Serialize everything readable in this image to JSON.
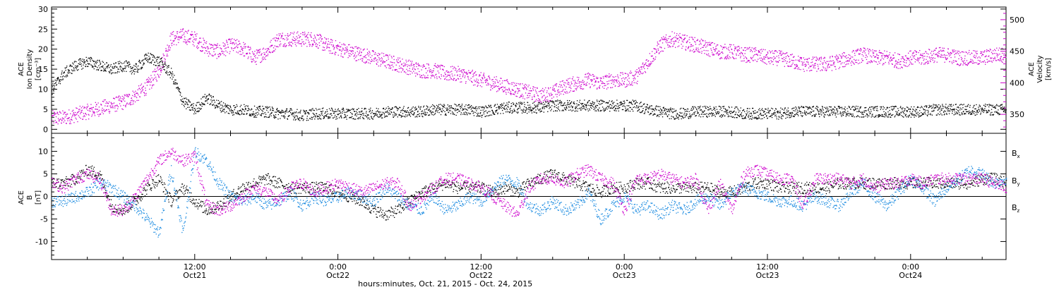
{
  "colors": {
    "black": "#000000",
    "magenta": "#cc00cc",
    "blue": "#1a8ae0"
  },
  "chart_data": [
    {
      "type": "scatter",
      "panel": "plasma",
      "left_axis": {
        "label_lines": [
          "ACE",
          "Ion Density",
          "[cm⁻³]"
        ],
        "ticks": [
          0,
          5,
          10,
          15,
          20,
          25,
          30
        ],
        "ylim": [
          -1,
          30.5
        ]
      },
      "right_axis": {
        "label_lines": [
          "ACE",
          "Velocity",
          "[km/s]"
        ],
        "ticks": [
          350,
          400,
          450,
          500
        ],
        "ylim": [
          320,
          520
        ]
      },
      "series": [
        {
          "color": "#000000",
          "axis": "left",
          "x": [
            0,
            1,
            2,
            3,
            4,
            5,
            6,
            7,
            8,
            9,
            10,
            11,
            12,
            13,
            14,
            15,
            16,
            17,
            18,
            19,
            20,
            21,
            22,
            23,
            24,
            25,
            26,
            27,
            28,
            29,
            30,
            31,
            32,
            33,
            34,
            35,
            36,
            37,
            38,
            39,
            40,
            41,
            42,
            43,
            44,
            45,
            46,
            47,
            48,
            49,
            50,
            51,
            52,
            53,
            54,
            55,
            56,
            57,
            58,
            59,
            60,
            61,
            62,
            63,
            64,
            65,
            66,
            67,
            68,
            69,
            70,
            71,
            72,
            73,
            74,
            75,
            76,
            77,
            78,
            79,
            80
          ],
          "y": [
            10,
            14,
            16,
            17,
            16,
            15,
            16,
            15,
            18,
            17,
            14,
            7,
            5,
            8,
            6,
            5,
            5,
            4.5,
            4.5,
            4,
            4,
            3.5,
            4,
            4,
            4,
            4,
            4,
            4,
            4.5,
            4.5,
            4.5,
            4.5,
            5,
            5,
            5,
            5,
            4.5,
            5,
            5.5,
            5.5,
            5.5,
            5.5,
            6,
            6,
            6,
            6,
            6,
            6,
            6,
            6,
            5,
            4.5,
            4,
            4,
            4.5,
            4.5,
            4.5,
            4.5,
            4,
            4,
            4,
            4,
            4.5,
            4.5,
            4.5,
            4.5,
            4.5,
            4.5,
            4.5,
            4.5,
            4.5,
            4.5,
            4.5,
            4.5,
            5,
            5,
            5,
            5,
            5,
            5,
            5
          ]
        },
        {
          "color": "#cc00cc",
          "axis": "right",
          "x": [
            0,
            1,
            2,
            3,
            4,
            5,
            6,
            7,
            8,
            9,
            10,
            11,
            12,
            13,
            14,
            15,
            16,
            17,
            18,
            19,
            20,
            21,
            22,
            23,
            24,
            25,
            26,
            27,
            28,
            29,
            30,
            31,
            32,
            33,
            34,
            35,
            36,
            37,
            38,
            39,
            40,
            41,
            42,
            43,
            44,
            45,
            46,
            47,
            48,
            49,
            50,
            51,
            52,
            53,
            54,
            55,
            56,
            57,
            58,
            59,
            60,
            61,
            62,
            63,
            64,
            65,
            66,
            67,
            68,
            69,
            70,
            71,
            72,
            73,
            74,
            75,
            76,
            77,
            78,
            79,
            80
          ],
          "y": [
            345,
            345,
            350,
            355,
            360,
            365,
            370,
            380,
            395,
            420,
            470,
            475,
            470,
            455,
            450,
            460,
            455,
            440,
            450,
            470,
            470,
            470,
            470,
            460,
            455,
            450,
            445,
            440,
            435,
            430,
            425,
            420,
            420,
            415,
            415,
            410,
            405,
            400,
            395,
            390,
            385,
            380,
            385,
            395,
            400,
            405,
            400,
            405,
            405,
            410,
            435,
            460,
            470,
            465,
            460,
            455,
            450,
            450,
            445,
            445,
            440,
            440,
            435,
            430,
            430,
            430,
            435,
            440,
            445,
            440,
            440,
            435,
            440,
            440,
            445,
            445,
            440,
            440,
            440,
            445,
            445
          ]
        }
      ]
    },
    {
      "type": "scatter",
      "panel": "magnetic",
      "left_axis": {
        "label_lines": [
          "ACE",
          "B",
          "[nT]"
        ],
        "ticks": [
          -10,
          -5,
          0,
          5,
          10
        ],
        "ylim": [
          -14,
          14
        ]
      },
      "zero_line": true,
      "series": [
        {
          "name": "Bx",
          "color": "#000000",
          "x": [
            0,
            1,
            2,
            3,
            4,
            5,
            6,
            7,
            8,
            9,
            10,
            11,
            12,
            13,
            14,
            15,
            16,
            17,
            18,
            19,
            20,
            21,
            22,
            23,
            24,
            25,
            26,
            27,
            28,
            29,
            30,
            31,
            32,
            33,
            34,
            35,
            36,
            37,
            38,
            39,
            40,
            41,
            42,
            43,
            44,
            45,
            46,
            47,
            48,
            49,
            50,
            51,
            52,
            53,
            54,
            55,
            56,
            57,
            58,
            59,
            60,
            61,
            62,
            63,
            64,
            65,
            66,
            67,
            68,
            69,
            70,
            71,
            72,
            73,
            74,
            75,
            76,
            77,
            78,
            79,
            80
          ],
          "y": [
            3,
            3,
            4,
            6,
            5,
            -2,
            -3,
            -1,
            2,
            4,
            -1,
            2,
            -1,
            -3,
            -2,
            0,
            2,
            3,
            4,
            3,
            2,
            2,
            2,
            2,
            1,
            0,
            -1,
            -3,
            -4,
            -3,
            -1,
            1,
            2,
            3,
            2,
            2,
            2,
            1,
            2,
            1,
            3,
            4,
            5,
            4,
            3,
            2,
            1,
            2,
            2,
            3,
            3,
            2,
            2,
            2,
            2,
            2,
            1,
            1,
            2,
            3,
            3,
            2,
            2,
            2,
            2,
            2,
            3,
            3,
            3,
            3,
            3,
            3,
            3,
            3,
            3,
            3,
            3,
            3,
            4,
            4,
            3
          ]
        },
        {
          "name": "By",
          "color": "#1a8ae0",
          "x": [
            0,
            1,
            2,
            3,
            4,
            5,
            6,
            7,
            8,
            9,
            10,
            11,
            12,
            13,
            14,
            15,
            16,
            17,
            18,
            19,
            20,
            21,
            22,
            23,
            24,
            25,
            26,
            27,
            28,
            29,
            30,
            31,
            32,
            33,
            34,
            35,
            36,
            37,
            38,
            39,
            40,
            41,
            42,
            43,
            44,
            45,
            46,
            47,
            48,
            49,
            50,
            51,
            52,
            53,
            54,
            55,
            56,
            57,
            58,
            59,
            60,
            61,
            62,
            63,
            64,
            65,
            66,
            67,
            68,
            69,
            70,
            71,
            72,
            73,
            74,
            75,
            76,
            77,
            78,
            79,
            80
          ],
          "y": [
            -1,
            -1,
            0,
            1,
            3,
            2,
            0,
            -2,
            -5,
            -8,
            6,
            -8,
            10,
            8,
            3,
            0,
            -1,
            0,
            -2,
            -1,
            1,
            -2,
            0,
            -1,
            0,
            1,
            0,
            -1,
            2,
            0,
            -2,
            -3,
            0,
            -3,
            -2,
            0,
            -1,
            2,
            4,
            3,
            -2,
            -3,
            -1,
            -3,
            -2,
            1,
            -5,
            -2,
            0,
            -3,
            -2,
            -4,
            -2,
            -3,
            -1,
            0,
            -2,
            1,
            2,
            1,
            0,
            -1,
            -1,
            -2,
            0,
            -1,
            -2,
            1,
            3,
            0,
            -2,
            1,
            4,
            2,
            -1,
            2,
            4,
            6,
            5,
            3,
            4
          ]
        },
        {
          "name": "Bz",
          "color": "#cc00cc",
          "x": [
            0,
            1,
            2,
            3,
            4,
            5,
            6,
            7,
            8,
            9,
            10,
            11,
            12,
            13,
            14,
            15,
            16,
            17,
            18,
            19,
            20,
            21,
            22,
            23,
            24,
            25,
            26,
            27,
            28,
            29,
            30,
            31,
            32,
            33,
            34,
            35,
            36,
            37,
            38,
            39,
            40,
            41,
            42,
            43,
            44,
            45,
            46,
            47,
            48,
            49,
            50,
            51,
            52,
            53,
            54,
            55,
            56,
            57,
            58,
            59,
            60,
            61,
            62,
            63,
            64,
            65,
            66,
            67,
            68,
            69,
            70,
            71,
            72,
            73,
            74,
            75,
            76,
            77,
            78,
            79,
            80
          ],
          "y": [
            3,
            2,
            4,
            5,
            4,
            -3,
            -3,
            0,
            4,
            8,
            10,
            8,
            9,
            -2,
            -3,
            -2,
            0,
            2,
            1,
            -1,
            2,
            3,
            1,
            2,
            3,
            2,
            1,
            2,
            3,
            3,
            -2,
            0,
            2,
            4,
            4,
            3,
            2,
            0,
            -2,
            -4,
            2,
            4,
            4,
            3,
            5,
            6,
            4,
            3,
            -3,
            4,
            4,
            5,
            4,
            3,
            4,
            -3,
            3,
            -3,
            5,
            6,
            5,
            4,
            4,
            -2,
            4,
            4,
            4,
            3,
            4,
            2,
            3,
            3,
            4,
            3,
            4,
            4,
            4,
            4,
            4,
            3,
            2
          ]
        }
      ]
    }
  ],
  "legend": [
    {
      "label": "Bx",
      "base": "B",
      "sub": "x",
      "color": "#000000"
    },
    {
      "label": "By",
      "base": "B",
      "sub": "y",
      "color": "#1a8ae0"
    },
    {
      "label": "Bz",
      "base": "B",
      "sub": "z",
      "color": "#cc00cc"
    }
  ],
  "x_axis": {
    "xlim_hours": [
      0,
      80
    ],
    "ticks": [
      {
        "hour": 12,
        "time": "12:00",
        "date": "Oct21"
      },
      {
        "hour": 24,
        "time": "0:00",
        "date": "Oct22"
      },
      {
        "hour": 36,
        "time": "12:00",
        "date": "Oct22"
      },
      {
        "hour": 48,
        "time": "0:00",
        "date": "Oct23"
      },
      {
        "hour": 60,
        "time": "12:00",
        "date": "Oct23"
      },
      {
        "hour": 72,
        "time": "0:00",
        "date": "Oct24"
      }
    ],
    "title": "hours:minutes, Oct. 21, 2015 - Oct. 24, 2015"
  }
}
